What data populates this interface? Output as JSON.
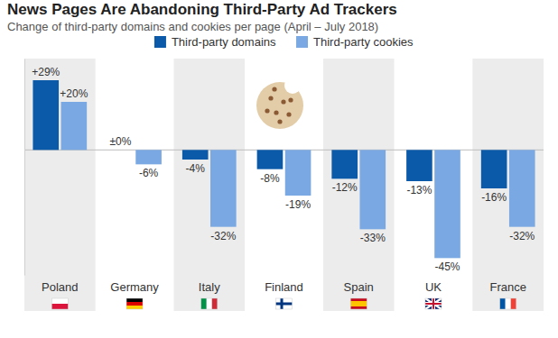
{
  "chart_data": {
    "type": "bar",
    "title": "News Pages Are Abandoning Third-Party Ad Trackers",
    "subtitle": "Change of third-party domains and cookies per page (April – July 2018)",
    "categories": [
      "Poland",
      "Germany",
      "Italy",
      "Finland",
      "Spain",
      "UK",
      "France"
    ],
    "series": [
      {
        "name": "Third-party domains",
        "color": "#0b5aaa",
        "values": [
          29,
          0,
          -4,
          -8,
          -12,
          -13,
          -16
        ],
        "value_labels": [
          "+29%",
          "±0%",
          "-4%",
          "-8%",
          "-12%",
          "-13%",
          "-16%"
        ]
      },
      {
        "name": "Third-party cookies",
        "color": "#7aa8e2",
        "values": [
          20,
          -6,
          -32,
          -19,
          -33,
          -45,
          -32
        ],
        "value_labels": [
          "+20%",
          "-6%",
          "-32%",
          "-19%",
          "-33%",
          "-45%",
          "-32%"
        ]
      }
    ],
    "ylim": [
      -52,
      38
    ],
    "yticks": [
      0
    ],
    "grid": true,
    "legend": "top",
    "data_labels": true,
    "tick_labels": false
  }
}
